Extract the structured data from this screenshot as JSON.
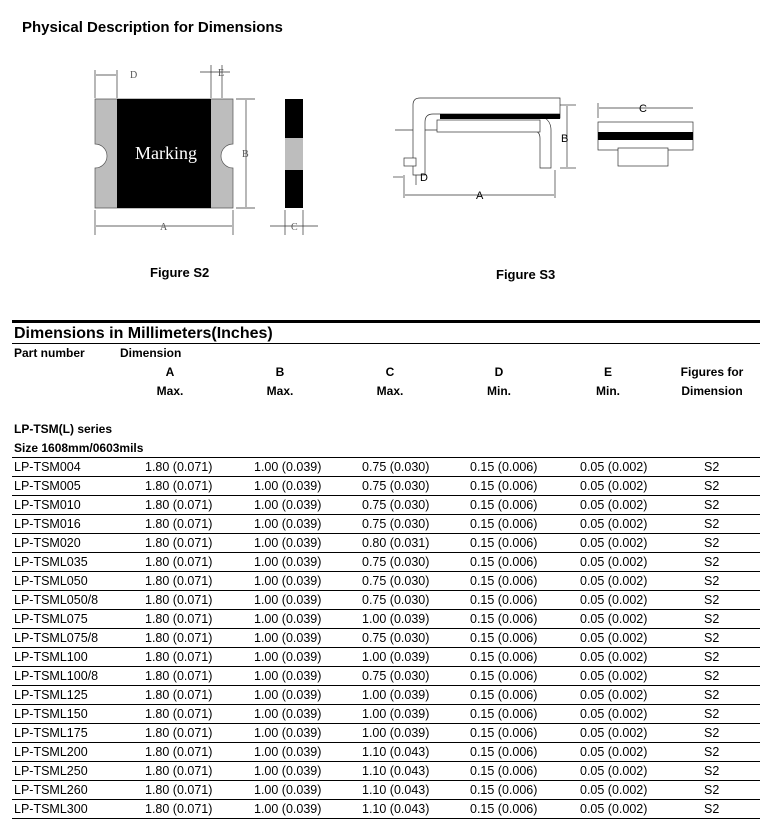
{
  "heading": "Physical Description for Dimensions",
  "figures": {
    "s2_caption": "Figure S2",
    "s3_caption": "Figure S3",
    "marking": "Marking",
    "labels": {
      "A": "A",
      "B": "B",
      "C": "C",
      "D": "D",
      "E": "E"
    }
  },
  "table": {
    "title": "Dimensions in Millimeters(Inches)",
    "part_header": "Part number",
    "dimension_header": "Dimension",
    "columns": [
      {
        "letter": "A",
        "limit": "Max."
      },
      {
        "letter": "B",
        "limit": "Max."
      },
      {
        "letter": "C",
        "limit": "Max."
      },
      {
        "letter": "D",
        "limit": "Min."
      },
      {
        "letter": "E",
        "limit": "Min."
      }
    ],
    "figures_header": [
      "Figures for",
      "Dimension"
    ],
    "series": "LP-TSM(L) series",
    "size": "Size 1608mm/0603mils",
    "rows": [
      [
        "LP-TSM004",
        "1.80 (0.071)",
        "1.00 (0.039)",
        "0.75 (0.030)",
        "0.15 (0.006)",
        "0.05 (0.002)",
        "S2"
      ],
      [
        "LP-TSM005",
        "1.80 (0.071)",
        "1.00 (0.039)",
        "0.75 (0.030)",
        "0.15 (0.006)",
        "0.05 (0.002)",
        "S2"
      ],
      [
        "LP-TSM010",
        "1.80 (0.071)",
        "1.00 (0.039)",
        "0.75 (0.030)",
        "0.15 (0.006)",
        "0.05 (0.002)",
        "S2"
      ],
      [
        "LP-TSM016",
        "1.80 (0.071)",
        "1.00 (0.039)",
        "0.75 (0.030)",
        "0.15 (0.006)",
        "0.05 (0.002)",
        "S2"
      ],
      [
        "LP-TSM020",
        "1.80 (0.071)",
        "1.00 (0.039)",
        "0.80 (0.031)",
        "0.15 (0.006)",
        "0.05 (0.002)",
        "S2"
      ],
      [
        "LP-TSML035",
        "1.80 (0.071)",
        "1.00 (0.039)",
        "0.75 (0.030)",
        "0.15 (0.006)",
        "0.05 (0.002)",
        "S2"
      ],
      [
        "LP-TSML050",
        "1.80 (0.071)",
        "1.00 (0.039)",
        "0.75 (0.030)",
        "0.15 (0.006)",
        "0.05 (0.002)",
        "S2"
      ],
      [
        "LP-TSML050/8",
        "1.80 (0.071)",
        "1.00 (0.039)",
        "0.75 (0.030)",
        "0.15 (0.006)",
        "0.05 (0.002)",
        "S2"
      ],
      [
        "LP-TSML075",
        "1.80 (0.071)",
        "1.00 (0.039)",
        "1.00 (0.039)",
        "0.15 (0.006)",
        "0.05 (0.002)",
        "S2"
      ],
      [
        "LP-TSML075/8",
        "1.80 (0.071)",
        "1.00 (0.039)",
        "0.75 (0.030)",
        "0.15 (0.006)",
        "0.05 (0.002)",
        "S2"
      ],
      [
        "LP-TSML100",
        "1.80 (0.071)",
        "1.00 (0.039)",
        "1.00 (0.039)",
        "0.15 (0.006)",
        "0.05 (0.002)",
        "S2"
      ],
      [
        "LP-TSML100/8",
        "1.80 (0.071)",
        "1.00 (0.039)",
        "0.75 (0.030)",
        "0.15 (0.006)",
        "0.05 (0.002)",
        "S2"
      ],
      [
        "LP-TSML125",
        "1.80 (0.071)",
        "1.00 (0.039)",
        "1.00 (0.039)",
        "0.15 (0.006)",
        "0.05 (0.002)",
        "S2"
      ],
      [
        "LP-TSML150",
        "1.80 (0.071)",
        "1.00 (0.039)",
        "1.00 (0.039)",
        "0.15 (0.006)",
        "0.05 (0.002)",
        "S2"
      ],
      [
        "LP-TSML175",
        "1.80 (0.071)",
        "1.00 (0.039)",
        "1.00 (0.039)",
        "0.15 (0.006)",
        "0.05 (0.002)",
        "S2"
      ],
      [
        "LP-TSML200",
        "1.80 (0.071)",
        "1.00 (0.039)",
        "1.10 (0.043)",
        "0.15 (0.006)",
        "0.05 (0.002)",
        "S2"
      ],
      [
        "LP-TSML250",
        "1.80 (0.071)",
        "1.00 (0.039)",
        "1.10 (0.043)",
        "0.15 (0.006)",
        "0.05 (0.002)",
        "S2"
      ],
      [
        "LP-TSML260",
        "1.80 (0.071)",
        "1.00 (0.039)",
        "1.10 (0.043)",
        "0.15 (0.006)",
        "0.05 (0.002)",
        "S2"
      ],
      [
        "LP-TSML300",
        "1.80 (0.071)",
        "1.00 (0.039)",
        "1.10 (0.043)",
        "0.15 (0.006)",
        "0.05 (0.002)",
        "S2"
      ]
    ]
  }
}
